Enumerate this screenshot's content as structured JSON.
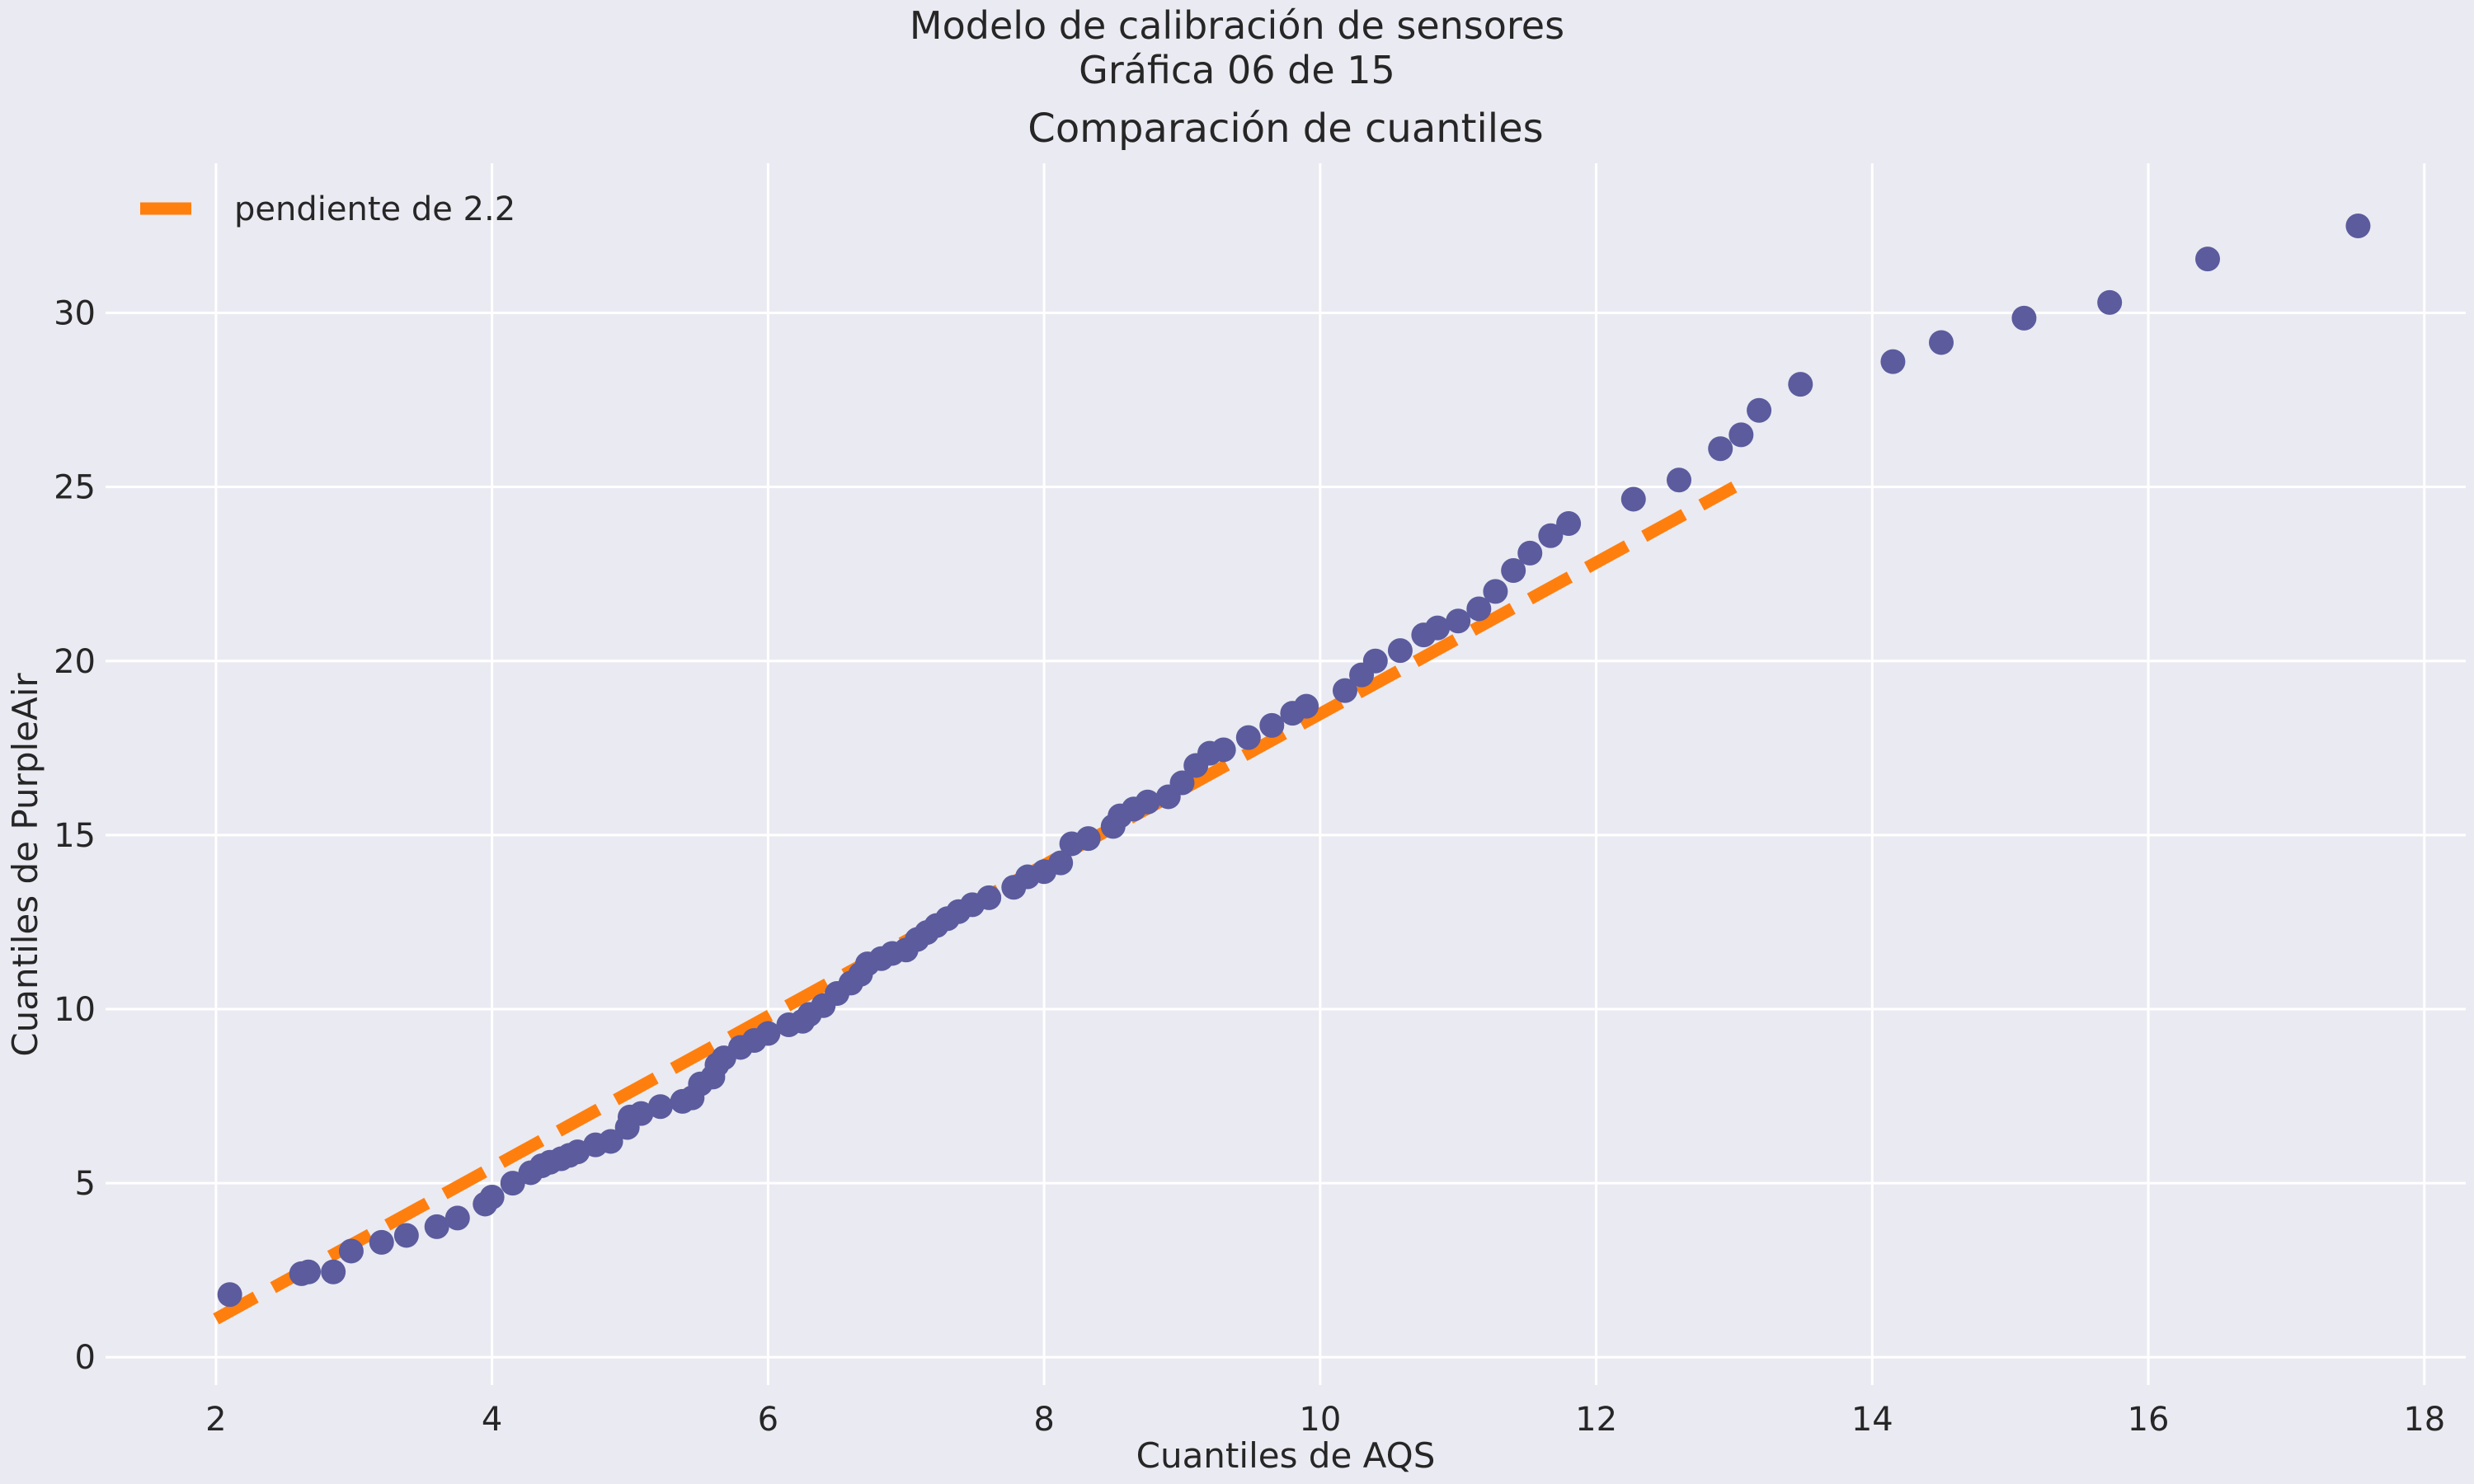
{
  "figure": {
    "suptitle_line1": "Modelo de calibración de sensores",
    "suptitle_line2": "Gráfica 06 de 15"
  },
  "colors": {
    "background": "#eaeaf2",
    "grid": "#ffffff",
    "points": "#5b5b9e",
    "fit_line": "#ff7f0e",
    "text": "#262626"
  },
  "chart_data": {
    "type": "scatter",
    "title": "Comparación de cuantiles",
    "xlabel": "Cuantiles de AQS",
    "ylabel": "Cuantiles de PurpleAir",
    "xlim": [
      1.2,
      18.3
    ],
    "ylim": [
      -0.8,
      34.3
    ],
    "xticks": [
      2,
      4,
      6,
      8,
      10,
      12,
      14,
      16,
      18
    ],
    "yticks": [
      0,
      5,
      10,
      15,
      20,
      25,
      30
    ],
    "grid": true,
    "legend": {
      "position": "top-left"
    },
    "series": [
      {
        "type": "scatter",
        "color": "#5b5b9e",
        "points": [
          [
            2.1,
            1.8
          ],
          [
            2.62,
            2.4
          ],
          [
            2.67,
            2.45
          ],
          [
            2.85,
            2.45
          ],
          [
            2.98,
            3.05
          ],
          [
            3.2,
            3.3
          ],
          [
            3.38,
            3.5
          ],
          [
            3.6,
            3.75
          ],
          [
            3.75,
            4.0
          ],
          [
            3.95,
            4.4
          ],
          [
            4.0,
            4.6
          ],
          [
            4.15,
            5.0
          ],
          [
            4.28,
            5.3
          ],
          [
            4.36,
            5.5
          ],
          [
            4.42,
            5.6
          ],
          [
            4.5,
            5.7
          ],
          [
            4.56,
            5.8
          ],
          [
            4.62,
            5.9
          ],
          [
            4.75,
            6.1
          ],
          [
            4.86,
            6.2
          ],
          [
            4.98,
            6.6
          ],
          [
            5.0,
            6.9
          ],
          [
            5.08,
            7.0
          ],
          [
            5.22,
            7.2
          ],
          [
            5.38,
            7.35
          ],
          [
            5.45,
            7.45
          ],
          [
            5.51,
            7.85
          ],
          [
            5.6,
            8.05
          ],
          [
            5.63,
            8.4
          ],
          [
            5.68,
            8.6
          ],
          [
            5.8,
            8.9
          ],
          [
            5.9,
            9.1
          ],
          [
            6.0,
            9.3
          ],
          [
            6.15,
            9.55
          ],
          [
            6.25,
            9.65
          ],
          [
            6.3,
            9.85
          ],
          [
            6.4,
            10.1
          ],
          [
            6.5,
            10.45
          ],
          [
            6.6,
            10.75
          ],
          [
            6.67,
            11.0
          ],
          [
            6.72,
            11.3
          ],
          [
            6.82,
            11.45
          ],
          [
            6.9,
            11.6
          ],
          [
            7.0,
            11.7
          ],
          [
            7.08,
            12.0
          ],
          [
            7.15,
            12.2
          ],
          [
            7.22,
            12.4
          ],
          [
            7.3,
            12.6
          ],
          [
            7.38,
            12.8
          ],
          [
            7.48,
            13.0
          ],
          [
            7.6,
            13.2
          ],
          [
            7.78,
            13.5
          ],
          [
            7.88,
            13.8
          ],
          [
            8.0,
            13.95
          ],
          [
            8.12,
            14.2
          ],
          [
            8.2,
            14.75
          ],
          [
            8.32,
            14.9
          ],
          [
            8.5,
            15.25
          ],
          [
            8.55,
            15.55
          ],
          [
            8.65,
            15.75
          ],
          [
            8.75,
            15.95
          ],
          [
            8.9,
            16.1
          ],
          [
            9.0,
            16.5
          ],
          [
            9.1,
            17.0
          ],
          [
            9.2,
            17.35
          ],
          [
            9.3,
            17.45
          ],
          [
            9.48,
            17.8
          ],
          [
            9.65,
            18.15
          ],
          [
            9.8,
            18.5
          ],
          [
            9.9,
            18.7
          ],
          [
            10.18,
            19.15
          ],
          [
            10.3,
            19.6
          ],
          [
            10.4,
            20.0
          ],
          [
            10.58,
            20.3
          ],
          [
            10.75,
            20.75
          ],
          [
            10.85,
            20.95
          ],
          [
            11.0,
            21.15
          ],
          [
            11.15,
            21.5
          ],
          [
            11.27,
            22.0
          ],
          [
            11.4,
            22.6
          ],
          [
            11.52,
            23.1
          ],
          [
            11.67,
            23.6
          ],
          [
            11.8,
            23.95
          ],
          [
            12.27,
            24.65
          ],
          [
            12.6,
            25.2
          ],
          [
            12.9,
            26.1
          ],
          [
            13.05,
            26.5
          ],
          [
            13.18,
            27.2
          ],
          [
            13.48,
            27.95
          ],
          [
            14.15,
            28.6
          ],
          [
            14.5,
            29.15
          ],
          [
            15.1,
            29.85
          ],
          [
            15.72,
            30.3
          ],
          [
            16.43,
            31.55
          ],
          [
            17.52,
            32.5
          ]
        ]
      },
      {
        "name": "pendiente de 2.2",
        "type": "line",
        "style": "dashed",
        "color": "#ff7f0e",
        "points": [
          [
            2.0,
            1.1
          ],
          [
            13.0,
            25.0
          ]
        ]
      }
    ]
  }
}
